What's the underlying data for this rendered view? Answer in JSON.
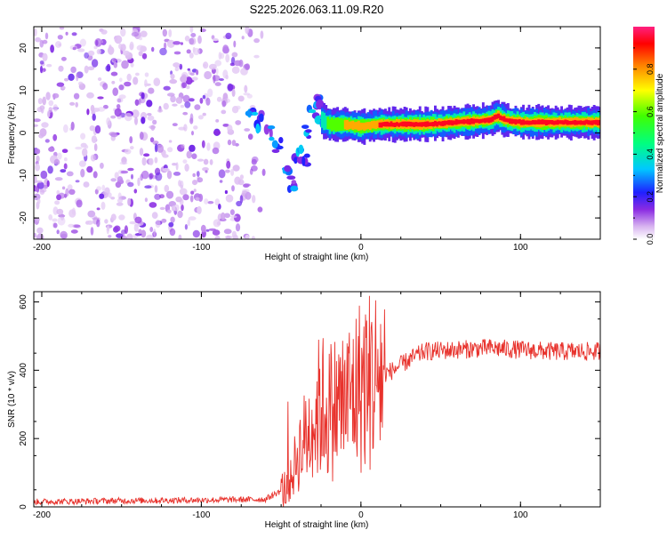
{
  "title": "S225.2026.063.11.09.R20",
  "chart_data": [
    {
      "type": "heatmap",
      "title": "S225.2026.063.11.09.R20",
      "xlabel": "Height of straight line (km)",
      "ylabel": "Frequency (Hz)",
      "xlim": [
        -205,
        150
      ],
      "ylim": [
        -25,
        25
      ],
      "xticks": [
        -200,
        -100,
        0,
        100
      ],
      "yticks": [
        -20,
        -10,
        0,
        10,
        20
      ],
      "colorbar": {
        "label": "Normalized spectral amplitude",
        "range": [
          0,
          1
        ],
        "ticks": [
          "0.0",
          "0.2",
          "0.4",
          "0.6",
          "0.8"
        ]
      },
      "ridge": {
        "x": [
          -70,
          -60,
          -50,
          -45,
          -40,
          -35,
          -30,
          -25,
          -20,
          -10,
          0,
          10,
          20,
          40,
          60,
          80,
          85,
          90,
          100,
          120,
          150
        ],
        "frequency": [
          4,
          2,
          -2,
          -8,
          -5,
          2,
          6,
          3,
          2,
          2,
          1.5,
          2,
          2,
          2,
          2.5,
          3,
          4,
          3,
          2.5,
          2.5,
          2.5
        ],
        "amplitude": [
          0.25,
          0.3,
          0.2,
          0.3,
          0.25,
          0.2,
          0.3,
          0.5,
          0.6,
          0.75,
          0.85,
          0.9,
          0.92,
          0.95,
          0.97,
          0.97,
          0.93,
          0.95,
          0.97,
          0.98,
          0.98
        ]
      }
    },
    {
      "type": "line",
      "xlabel": "Height of straight line (km)",
      "ylabel": "SNR (10 * v/v)",
      "xlim": [
        -205,
        150
      ],
      "ylim": [
        0,
        630
      ],
      "xticks": [
        -200,
        -100,
        0,
        100
      ],
      "yticks": [
        0,
        200,
        400,
        600
      ],
      "color": "#e8322c",
      "series": [
        {
          "name": "SNR",
          "x": [
            -205,
            -150,
            -100,
            -60,
            -45,
            -40,
            -35,
            -30,
            -25,
            -20,
            -15,
            -10,
            -5,
            0,
            10,
            20,
            30,
            40,
            60,
            80,
            100,
            120,
            150
          ],
          "y": [
            15,
            18,
            20,
            22,
            60,
            150,
            200,
            250,
            300,
            280,
            300,
            310,
            330,
            360,
            380,
            400,
            430,
            455,
            460,
            465,
            460,
            455,
            455
          ]
        }
      ]
    }
  ]
}
